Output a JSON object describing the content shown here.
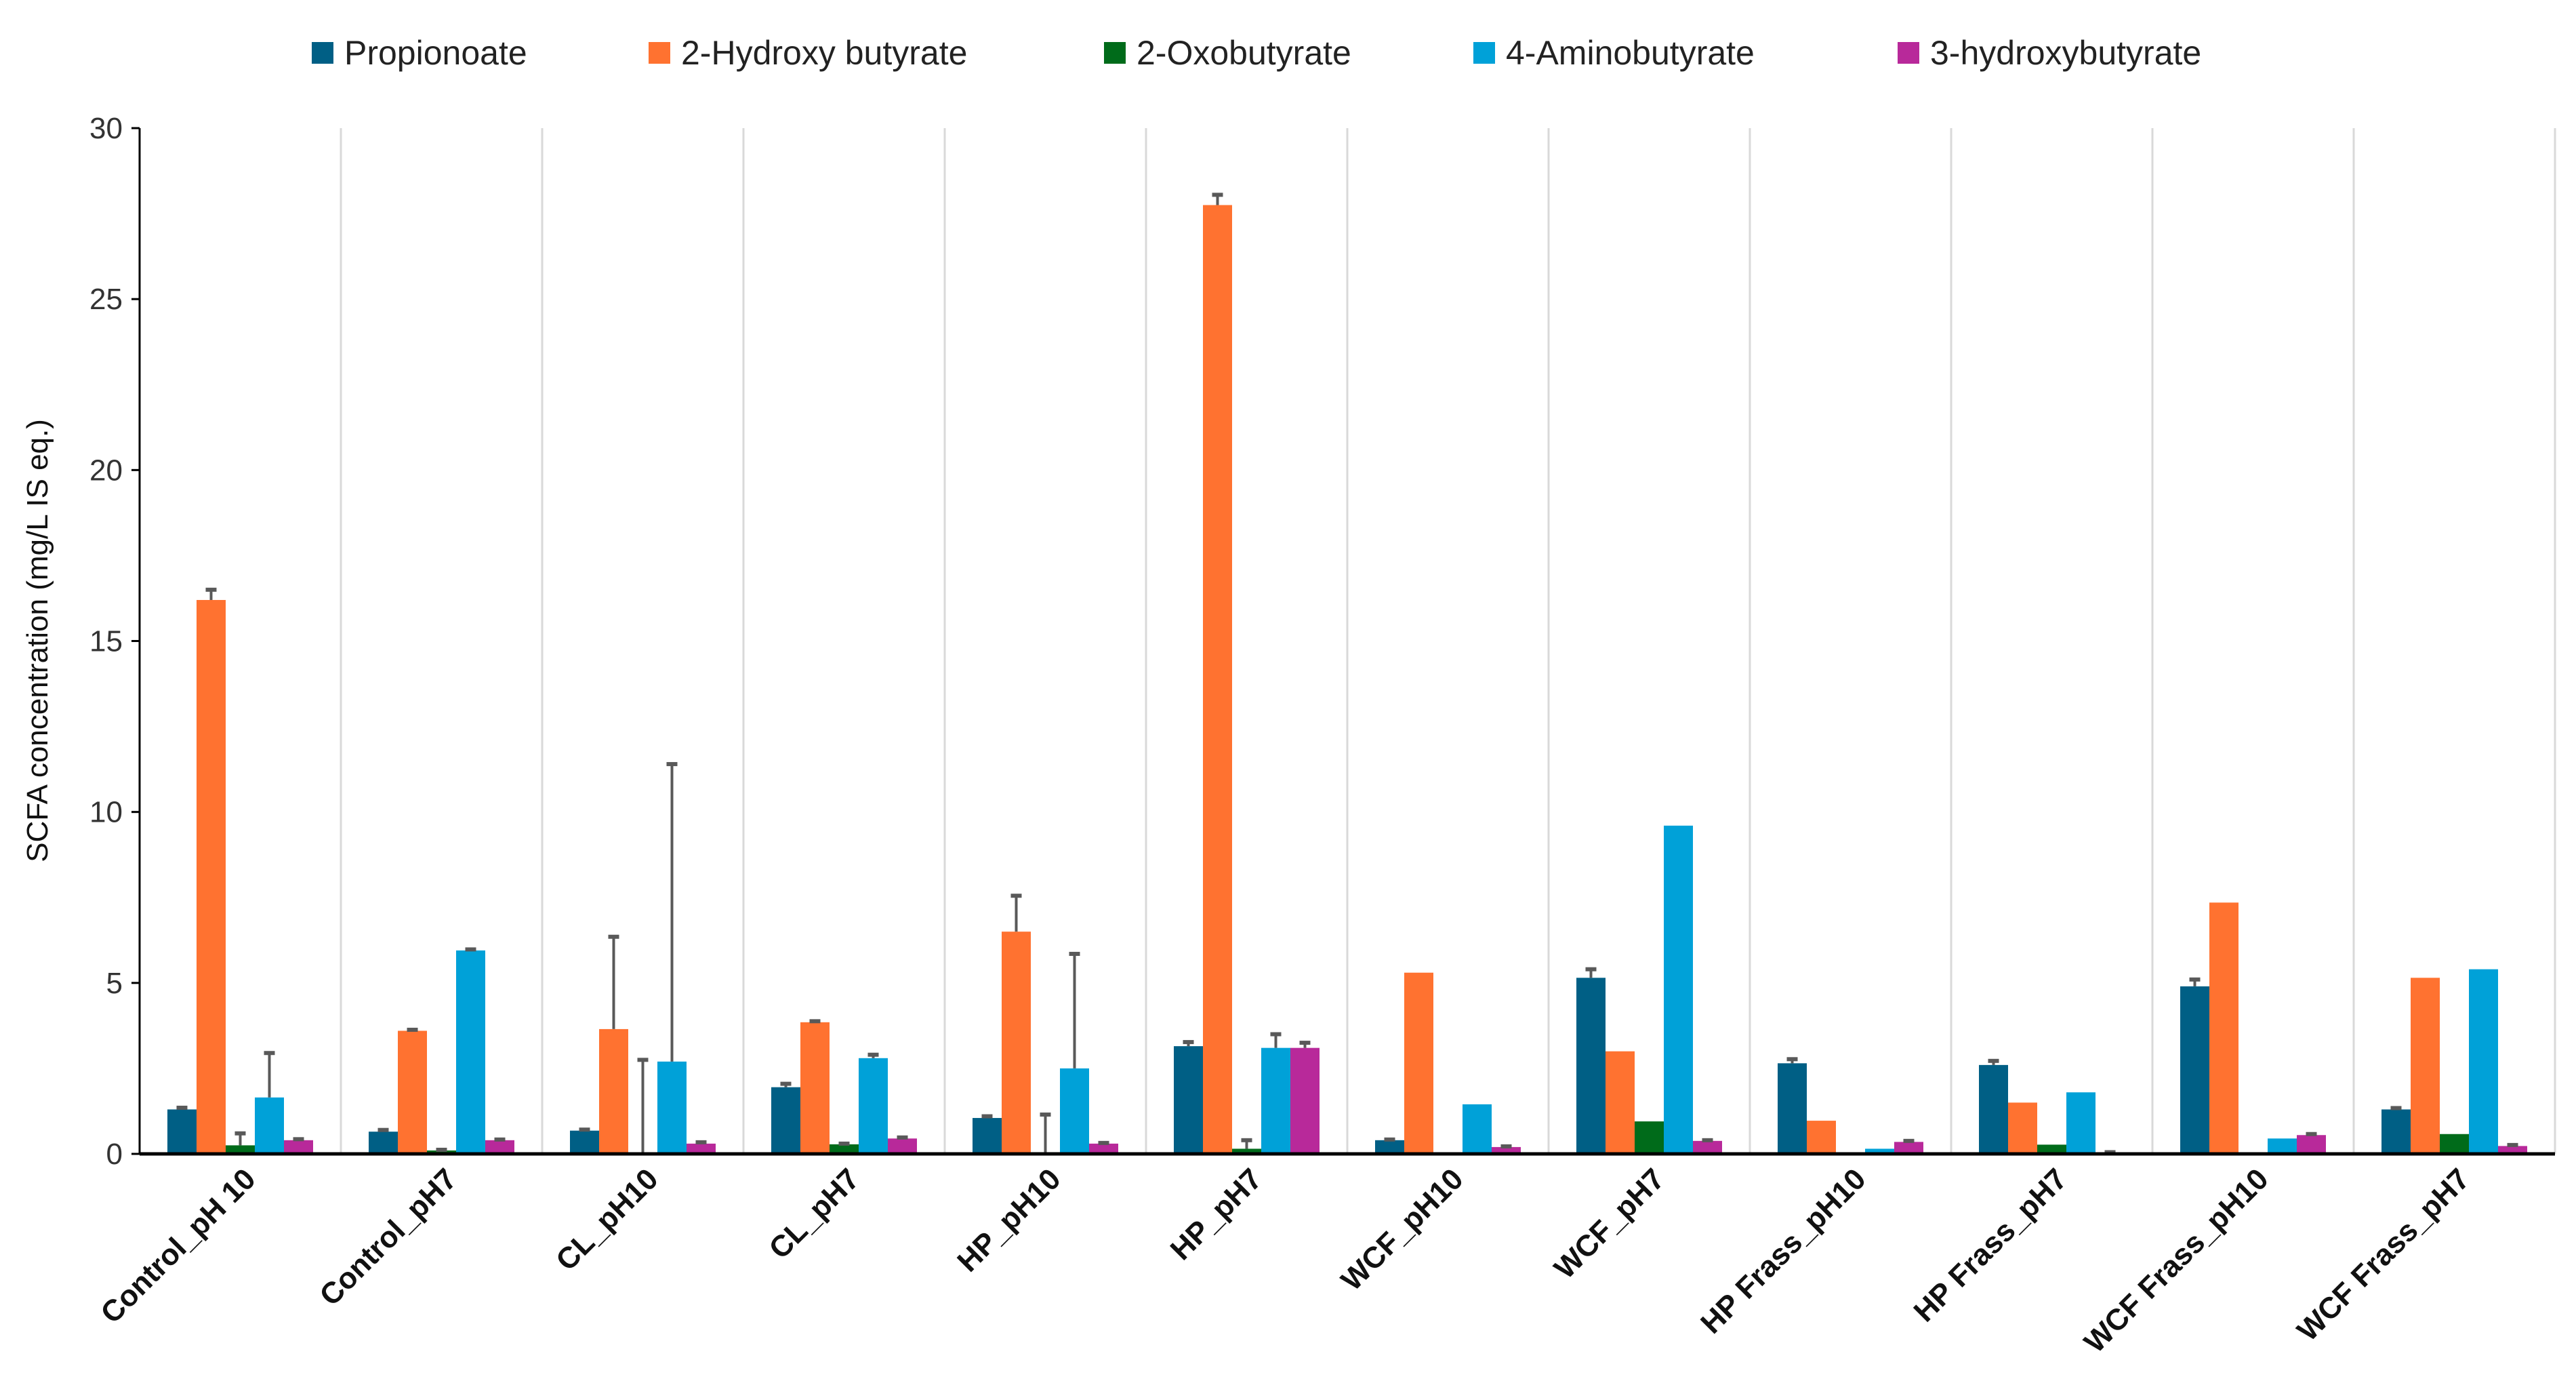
{
  "chart_data": {
    "type": "bar",
    "title": "",
    "xlabel": "",
    "ylabel": "SCFA concentration (mg/L IS eq.)",
    "ylim": [
      0,
      30
    ],
    "yticks": [
      0,
      5,
      10,
      15,
      20,
      25,
      30
    ],
    "grid": "vertical separators between groups",
    "legend_position": "top",
    "categories": [
      "Control_pH 10",
      "Control_pH7",
      "CL_pH10",
      "CL_pH7",
      "HP_pH10",
      "HP_pH7",
      "WCF_pH10",
      "WCF_pH7",
      "HP Frass_pH10",
      "HP Frass_pH7",
      "WCF Frass_pH10",
      "WCF Frass_pH7"
    ],
    "series": [
      {
        "name": "Propionoate",
        "color": "#005f85",
        "values": [
          1.3,
          0.65,
          0.68,
          1.95,
          1.05,
          3.15,
          0.4,
          5.15,
          2.65,
          2.6,
          4.9,
          1.3
        ],
        "errors": [
          0.05,
          0.05,
          0.03,
          0.1,
          0.05,
          0.12,
          0.02,
          0.25,
          0.12,
          0.12,
          0.2,
          0.04
        ]
      },
      {
        "name": "2-Hydroxy butyrate",
        "color": "#ff7230",
        "values": [
          16.2,
          3.6,
          3.65,
          3.85,
          6.5,
          27.75,
          5.3,
          3.0,
          0.97,
          1.5,
          7.35,
          5.15
        ],
        "errors": [
          0.3,
          0.03,
          2.7,
          0.03,
          1.05,
          0.3,
          0,
          0,
          0,
          0,
          0,
          0
        ]
      },
      {
        "name": "2-Oxobutyrate",
        "color": "#006b1a",
        "values": [
          0.25,
          0.1,
          0,
          0.28,
          0.05,
          0.15,
          0,
          0.95,
          0,
          0.27,
          0,
          0.58
        ],
        "errors": [
          0.35,
          0.02,
          2.75,
          0.02,
          1.1,
          0.25,
          0,
          0,
          0,
          0,
          0,
          0
        ]
      },
      {
        "name": "4-Aminobutyrate",
        "color": "#00a1d8",
        "values": [
          1.65,
          5.95,
          2.7,
          2.8,
          2.5,
          3.1,
          1.45,
          9.6,
          0.15,
          1.8,
          0.45,
          5.4
        ],
        "errors": [
          1.3,
          0.03,
          8.7,
          0.1,
          3.35,
          0.4,
          0,
          0,
          0,
          0,
          0,
          0
        ]
      },
      {
        "name": "3-hydroxybutyrate",
        "color": "#b8299a",
        "values": [
          0.4,
          0.4,
          0.3,
          0.45,
          0.3,
          3.1,
          0.2,
          0.38,
          0.35,
          0.03,
          0.55,
          0.23
        ],
        "errors": [
          0.03,
          0.02,
          0.04,
          0.03,
          0.02,
          0.15,
          0.02,
          0.02,
          0.03,
          0.02,
          0.03,
          0.03
        ]
      }
    ]
  }
}
